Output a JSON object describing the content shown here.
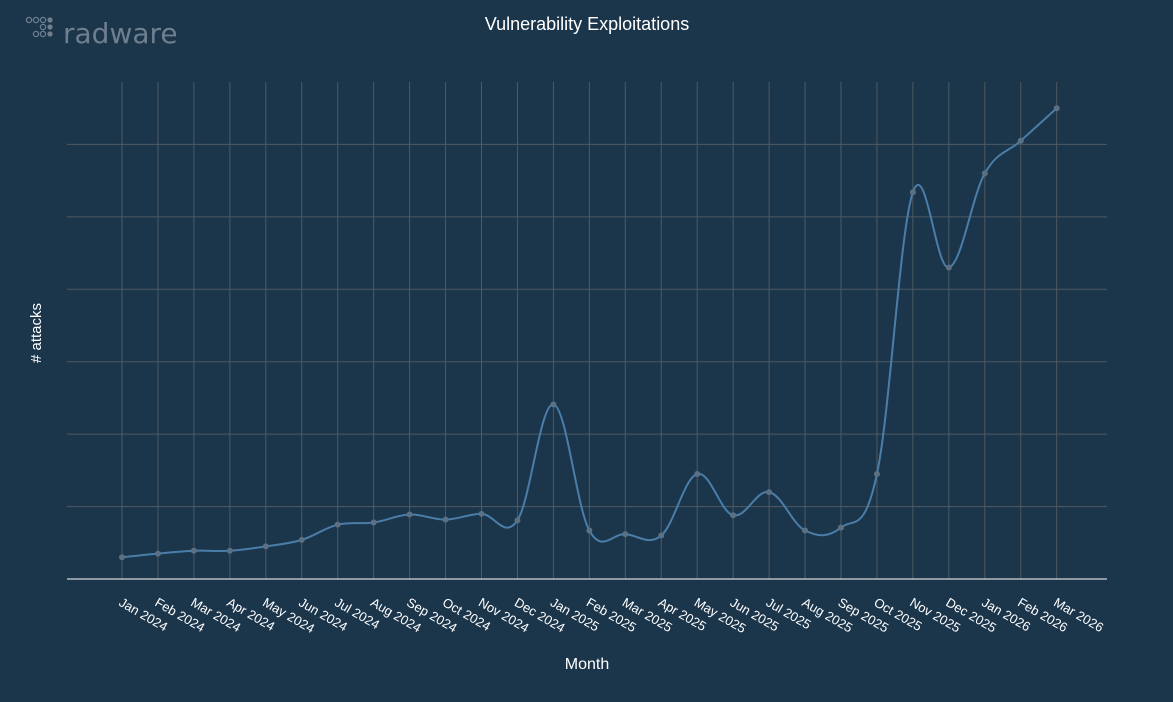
{
  "brand": {
    "name": "radware",
    "logo_icon": "radware-dots-logo-icon"
  },
  "colors": {
    "background": "#1b354b",
    "line": "#4a7ea8",
    "marker": "#5b7183",
    "grid": "#4f5a62",
    "axis": "#ffffff",
    "text": "#ffffff",
    "logo": "#6e7f8e"
  },
  "chart_data": {
    "type": "line",
    "title": "Vulnerability Exploitations",
    "xlabel": "Month",
    "ylabel": "# attacks",
    "grid": true,
    "y_tick_labels_visible": false,
    "categories": [
      "Jan 2024",
      "Feb 2024",
      "Mar 2024",
      "Apr 2024",
      "May 2024",
      "Jun 2024",
      "Jul 2024",
      "Aug 2024",
      "Sep 2024",
      "Oct 2024",
      "Nov 2024",
      "Dec 2024",
      "Jan 2025",
      "Feb 2025",
      "Mar 2025",
      "Apr 2025",
      "May 2025",
      "Jun 2025",
      "Jul 2025",
      "Aug 2025",
      "Sep 2025",
      "Oct 2025",
      "Nov 2025",
      "Dec 2025",
      "Jan 2026",
      "Feb 2026",
      "Mar 2026"
    ],
    "series": [
      {
        "values": [
          0.3,
          0.35,
          0.39,
          0.39,
          0.45,
          0.54,
          0.75,
          0.78,
          0.89,
          0.82,
          0.9,
          0.81,
          2.41,
          0.67,
          0.62,
          0.6,
          1.45,
          0.88,
          1.2,
          0.67,
          0.71,
          1.45,
          5.34,
          4.3,
          5.6,
          6.05,
          6.5
        ]
      }
    ],
    "ylim": [
      0,
      7
    ],
    "grid_lines_y": [
      1,
      2,
      3,
      4,
      5,
      6
    ]
  }
}
